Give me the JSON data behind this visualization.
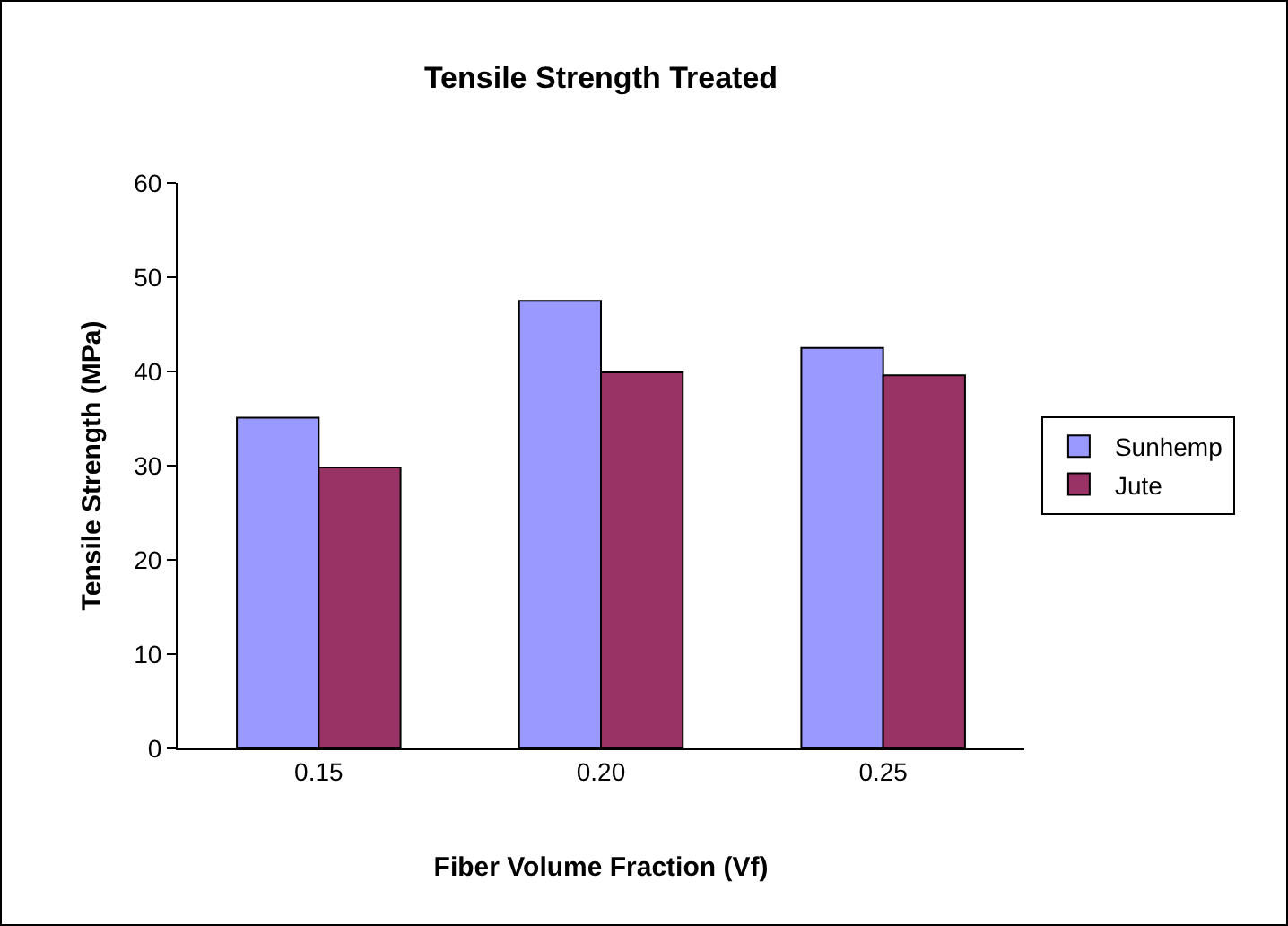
{
  "chart_data": {
    "type": "bar",
    "title": "Tensile Strength Treated",
    "xlabel": "Fiber Volume Fraction (Vf)",
    "ylabel": "Tensile Strength (MPa)",
    "categories": [
      "0.15",
      "0.20",
      "0.25"
    ],
    "series": [
      {
        "name": "Sunhemp",
        "color": "#9999ff",
        "values": [
          35.1,
          47.5,
          42.5
        ]
      },
      {
        "name": "Jute",
        "color": "#993366",
        "values": [
          29.8,
          39.9,
          39.6
        ]
      }
    ],
    "ylim": [
      0,
      60
    ],
    "yticks": [
      0,
      10,
      20,
      30,
      40,
      50,
      60
    ],
    "grid": false,
    "legend": "right"
  }
}
